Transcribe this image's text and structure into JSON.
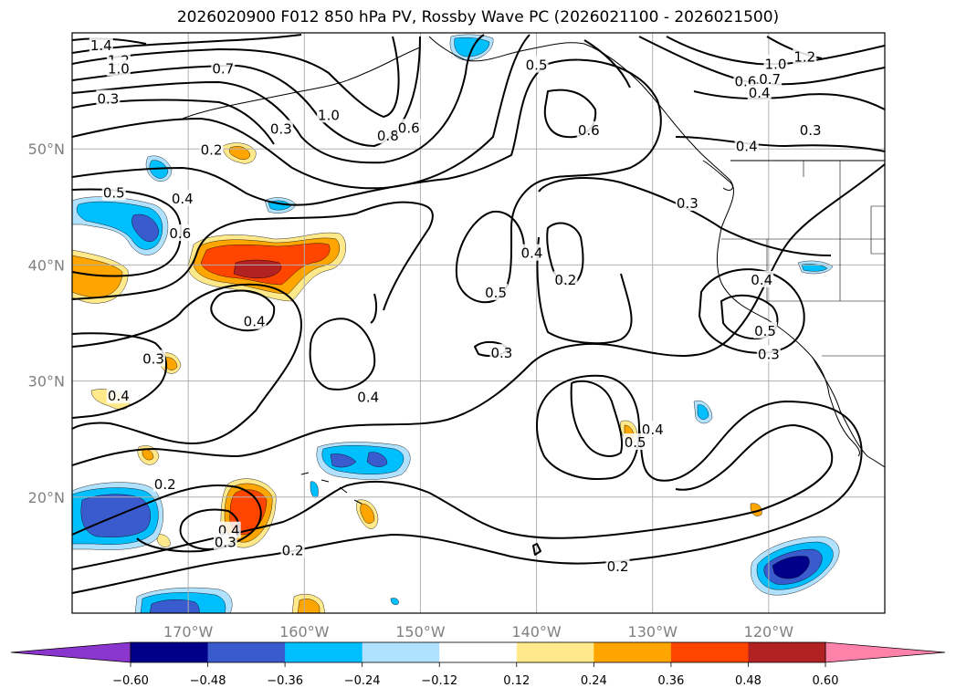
{
  "title": "2026020900 F012 850 hPa PV, Rossby Wave PC (2026021100 - 2026021500)",
  "map": {
    "lon_range": [
      -180,
      -110
    ],
    "lat_range": [
      10,
      60
    ],
    "lat_ticks": [
      {
        "value": 50,
        "label": "50°N"
      },
      {
        "value": 40,
        "label": "40°N"
      },
      {
        "value": 30,
        "label": "30°N"
      },
      {
        "value": 20,
        "label": "20°N"
      }
    ],
    "lon_ticks": [
      {
        "value": -170,
        "label": "170°W"
      },
      {
        "value": -160,
        "label": "160°W"
      },
      {
        "value": -150,
        "label": "150°W"
      },
      {
        "value": -140,
        "label": "140°W"
      },
      {
        "value": -130,
        "label": "130°W"
      },
      {
        "value": -120,
        "label": "120°W"
      }
    ],
    "grid": true
  },
  "colorbar": {
    "ticks": [
      "−0.60",
      "−0.48",
      "−0.36",
      "−0.24",
      "−0.12",
      "0.12",
      "0.24",
      "0.36",
      "0.48",
      "0.60"
    ],
    "colors": [
      "#8b35cf",
      "#00008b",
      "#3a5bcd",
      "#00bfff",
      "#b0e2ff",
      "#ffffff",
      "#ffe98a",
      "#ffa500",
      "#ff4500",
      "#b22222",
      "#ff82ab"
    ]
  },
  "contour_labels": [
    {
      "text": "1.4",
      "lon": -177.5,
      "lat": 58.9
    },
    {
      "text": "1.2",
      "lon": -176.0,
      "lat": 57.6
    },
    {
      "text": "1.0",
      "lon": -176.0,
      "lat": 56.9
    },
    {
      "text": "0.7",
      "lon": -167.0,
      "lat": 56.9
    },
    {
      "text": "0.3",
      "lon": -176.9,
      "lat": 54.3
    },
    {
      "text": "1.0",
      "lon": -157.9,
      "lat": 52.9
    },
    {
      "text": "0.3",
      "lon": -162.0,
      "lat": 51.7
    },
    {
      "text": "0.8",
      "lon": -152.8,
      "lat": 51.1
    },
    {
      "text": "0.6",
      "lon": -151.0,
      "lat": 51.8
    },
    {
      "text": "0.2",
      "lon": -168.0,
      "lat": 49.9
    },
    {
      "text": "0.5",
      "lon": -140.0,
      "lat": 57.2
    },
    {
      "text": "0.6",
      "lon": -135.5,
      "lat": 51.6
    },
    {
      "text": "1.0",
      "lon": -119.4,
      "lat": 57.3
    },
    {
      "text": "1.2",
      "lon": -116.9,
      "lat": 57.9
    },
    {
      "text": "0.6",
      "lon": -122.0,
      "lat": 55.8
    },
    {
      "text": "0.7",
      "lon": -119.9,
      "lat": 56.0
    },
    {
      "text": "0.4",
      "lon": -120.8,
      "lat": 54.8
    },
    {
      "text": "0.3",
      "lon": -116.4,
      "lat": 51.6
    },
    {
      "text": "0.4",
      "lon": -121.9,
      "lat": 50.2
    },
    {
      "text": "0.5",
      "lon": -176.4,
      "lat": 46.2
    },
    {
      "text": "0.4",
      "lon": -170.5,
      "lat": 45.7
    },
    {
      "text": "0.6",
      "lon": -170.7,
      "lat": 42.7
    },
    {
      "text": "0.3",
      "lon": -127.0,
      "lat": 45.3
    },
    {
      "text": "0.4",
      "lon": -140.4,
      "lat": 41.0
    },
    {
      "text": "0.5",
      "lon": -143.5,
      "lat": 37.6
    },
    {
      "text": "0.2",
      "lon": -137.5,
      "lat": 38.7
    },
    {
      "text": "0.4",
      "lon": -120.6,
      "lat": 38.7
    },
    {
      "text": "0.4",
      "lon": -164.3,
      "lat": 35.1
    },
    {
      "text": "0.5",
      "lon": -120.3,
      "lat": 34.3
    },
    {
      "text": "0.3",
      "lon": -120.0,
      "lat": 32.3
    },
    {
      "text": "0.3",
      "lon": -143.0,
      "lat": 32.4
    },
    {
      "text": "0.3",
      "lon": -173.0,
      "lat": 31.9
    },
    {
      "text": "0.4",
      "lon": -176.0,
      "lat": 28.7
    },
    {
      "text": "0.4",
      "lon": -154.5,
      "lat": 28.6
    },
    {
      "text": "0.4",
      "lon": -130.0,
      "lat": 25.8
    },
    {
      "text": "0.5",
      "lon": -131.5,
      "lat": 24.7
    },
    {
      "text": "0.2",
      "lon": -172.0,
      "lat": 21.1
    },
    {
      "text": "0.4",
      "lon": -166.5,
      "lat": 17.1
    },
    {
      "text": "0.3",
      "lon": -166.8,
      "lat": 16.1
    },
    {
      "text": "0.2",
      "lon": -161.0,
      "lat": 15.4
    },
    {
      "text": "0.2",
      "lon": -133.0,
      "lat": 14.0
    }
  ]
}
